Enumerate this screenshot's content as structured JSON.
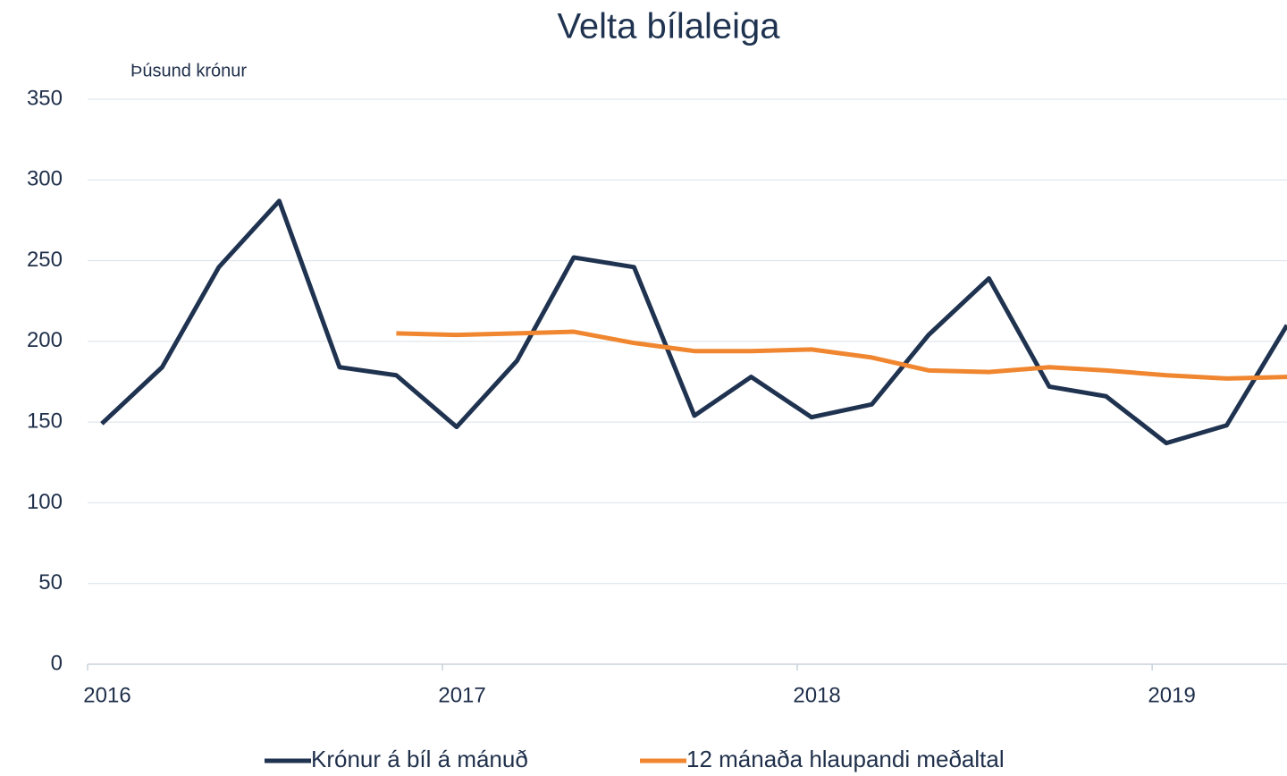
{
  "chart_data": {
    "type": "line",
    "title": "Velta bílaleiga",
    "y_label": "Þúsund krónur",
    "x": [
      2016.04,
      2016.21,
      2016.37,
      2016.54,
      2016.71,
      2016.87,
      2017.04,
      2017.21,
      2017.37,
      2017.54,
      2017.71,
      2017.87,
      2018.04,
      2018.21,
      2018.37,
      2018.54,
      2018.71,
      2018.87,
      2019.04,
      2019.21,
      2019.38
    ],
    "series": [
      {
        "name": "Krónur á bíl á mánuð",
        "color": "#1f3350",
        "values": [
          149,
          184,
          246,
          287,
          184,
          179,
          147,
          188,
          252,
          246,
          154,
          178,
          153,
          161,
          204,
          239,
          172,
          166,
          137,
          148,
          210
        ]
      },
      {
        "name": "12 mánaða hlaupandi meðaltal",
        "color": "#f0862f",
        "values": [
          null,
          null,
          null,
          null,
          null,
          205,
          204,
          205,
          206,
          199,
          194,
          194,
          195,
          190,
          182,
          181,
          184,
          182,
          179,
          177,
          178
        ]
      }
    ],
    "xlim": [
      2016,
      2019.38
    ],
    "xticks": [
      2016,
      2017,
      2018,
      2019
    ],
    "ylim": [
      0,
      350
    ],
    "yticks": [
      0,
      50,
      100,
      150,
      200,
      250,
      300,
      350
    ],
    "grid": true,
    "legend": "bottom"
  }
}
